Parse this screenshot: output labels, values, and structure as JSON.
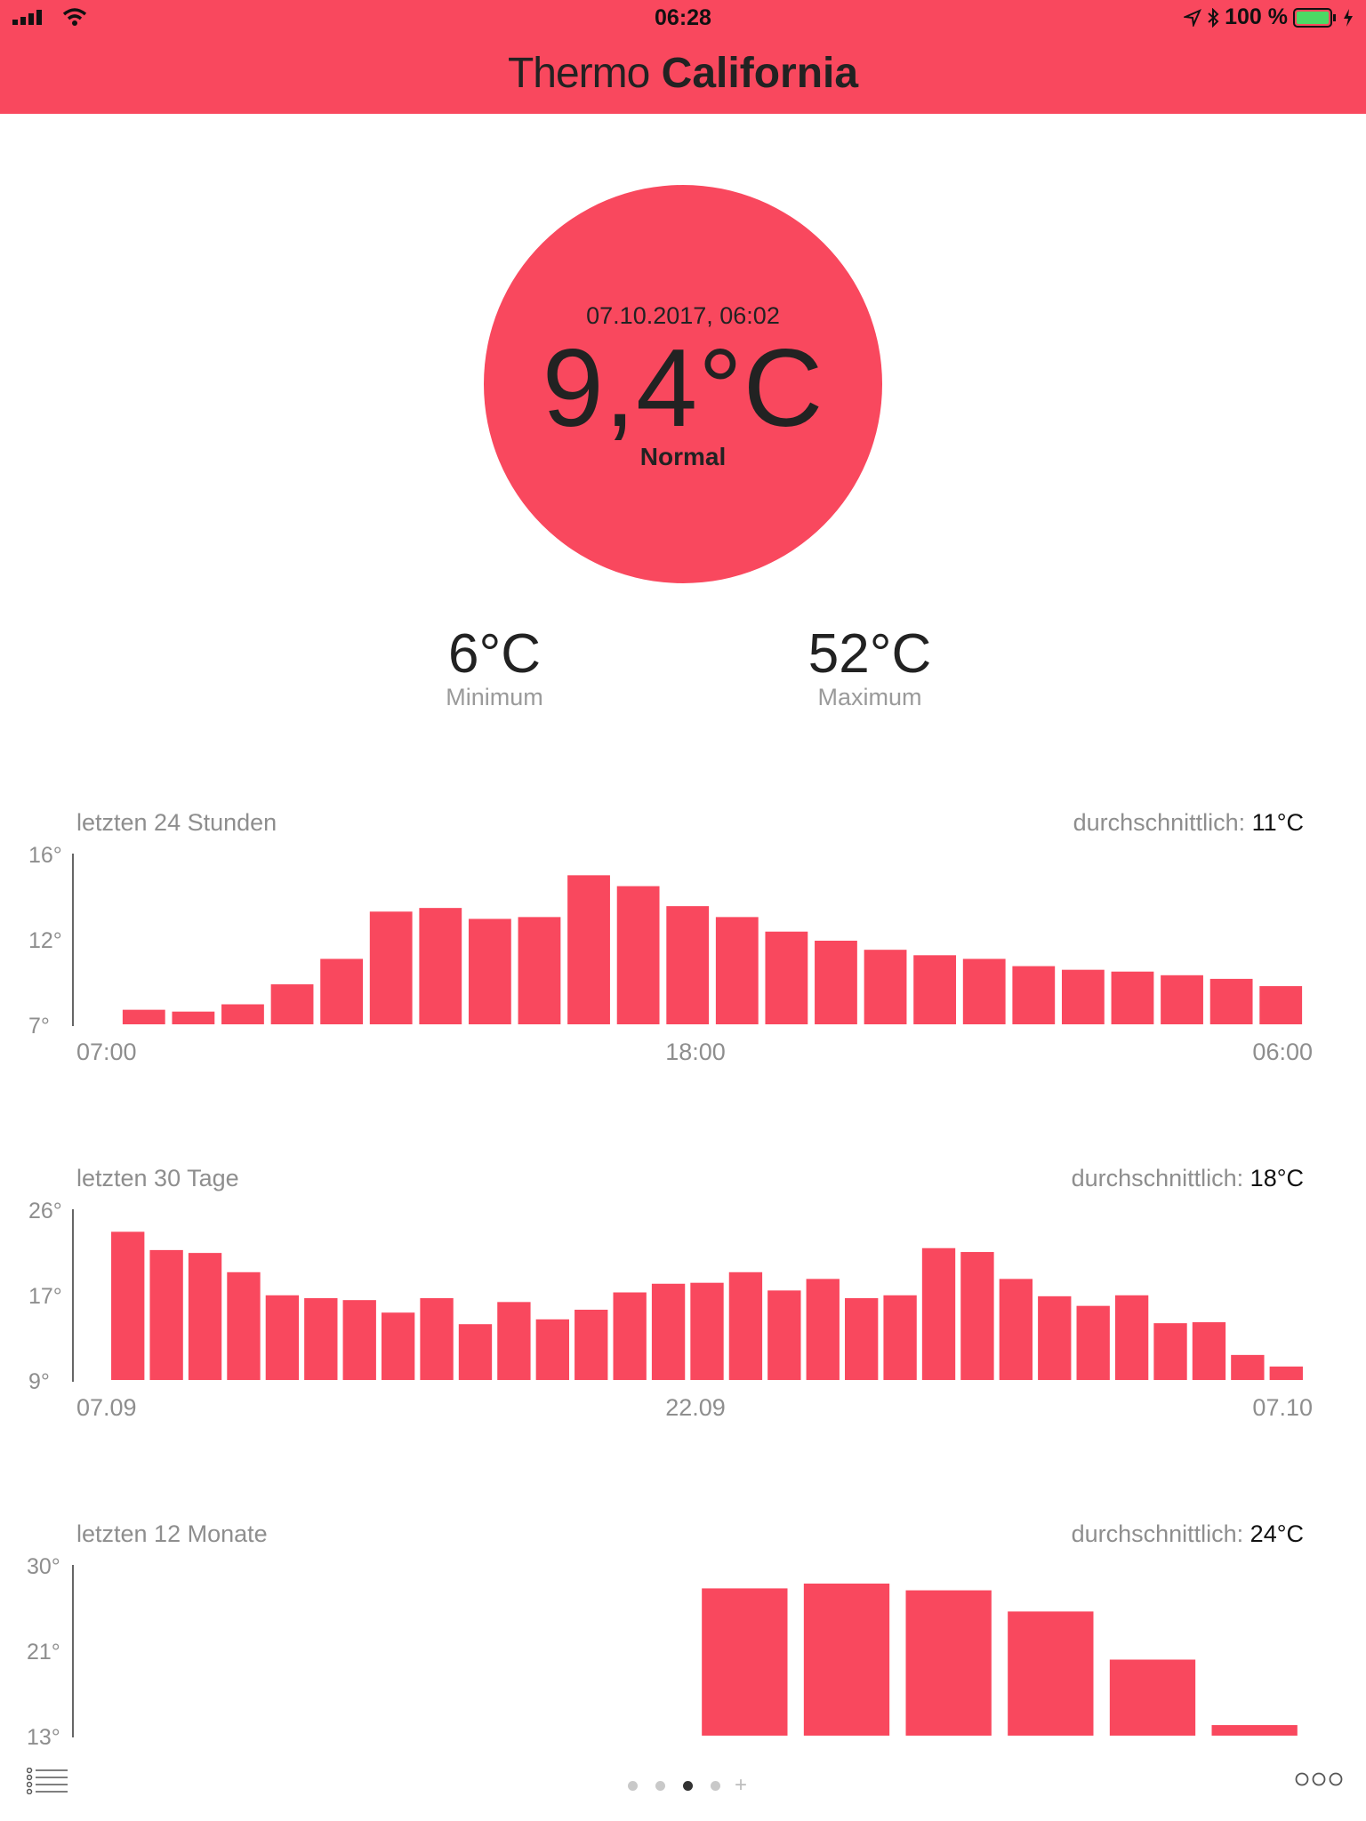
{
  "status_bar": {
    "time": "06:28",
    "battery": "100 %"
  },
  "header": {
    "title_light": "Thermo",
    "title_bold": "California"
  },
  "reading": {
    "timestamp": "07.10.2017, 06:02",
    "temperature": "9,4°C",
    "status": "Normal"
  },
  "stats": {
    "min_value": "6°C",
    "min_label": "Minimum",
    "max_value": "52°C",
    "max_label": "Maximum"
  },
  "colors": {
    "accent": "#f9485e",
    "text": "#222222",
    "muted": "#8e8e8e"
  },
  "charts": [
    {
      "label": "letzten 24 Stunden",
      "avg_label": "durchschnittlich:",
      "avg_value": "11°C"
    },
    {
      "label": "letzten 30 Tage",
      "avg_label": "durchschnittlich:",
      "avg_value": "18°C"
    },
    {
      "label": "letzten 12 Monate",
      "avg_label": "durchschnittlich:",
      "avg_value": "24°C"
    }
  ],
  "chart_data": [
    {
      "type": "bar",
      "title": "letzten 24 Stunden",
      "yticks": [
        "16°",
        "12°",
        "7°"
      ],
      "ylim": [
        7,
        16
      ],
      "xticks": [
        "07:00",
        "18:00",
        "06:00"
      ],
      "values": [
        7.8,
        7.7,
        8.1,
        9.2,
        10.6,
        13.2,
        13.4,
        12.8,
        12.9,
        15.2,
        14.6,
        13.5,
        12.9,
        12.1,
        11.6,
        11.1,
        10.8,
        10.6,
        10.2,
        10.0,
        9.9,
        9.7,
        9.5,
        9.1
      ],
      "grid": false,
      "legend": "none"
    },
    {
      "type": "bar",
      "title": "letzten 30 Tage",
      "yticks": [
        "26°",
        "17°",
        "9°"
      ],
      "ylim": [
        9,
        26
      ],
      "xticks": [
        "07.09",
        "22.09",
        "07.10"
      ],
      "values": [
        24.4,
        22.5,
        22.2,
        20.2,
        17.8,
        17.5,
        17.3,
        16.0,
        17.5,
        14.8,
        17.1,
        15.3,
        16.3,
        18.1,
        19.0,
        19.1,
        20.2,
        18.3,
        19.5,
        17.5,
        17.8,
        22.7,
        22.3,
        19.5,
        17.7,
        16.7,
        17.8,
        14.9,
        15.0,
        11.6,
        10.4
      ],
      "grid": false,
      "legend": "none"
    },
    {
      "type": "bar",
      "title": "letzten 12 Monate",
      "yticks": [
        "30°",
        "21°",
        "13°"
      ],
      "ylim": [
        13,
        30
      ],
      "values": [
        null,
        null,
        null,
        null,
        null,
        null,
        28.3,
        28.8,
        28.1,
        25.9,
        20.9,
        14.1
      ],
      "grid": false,
      "legend": "none"
    }
  ],
  "bottom_bar": {
    "plus": "+"
  }
}
